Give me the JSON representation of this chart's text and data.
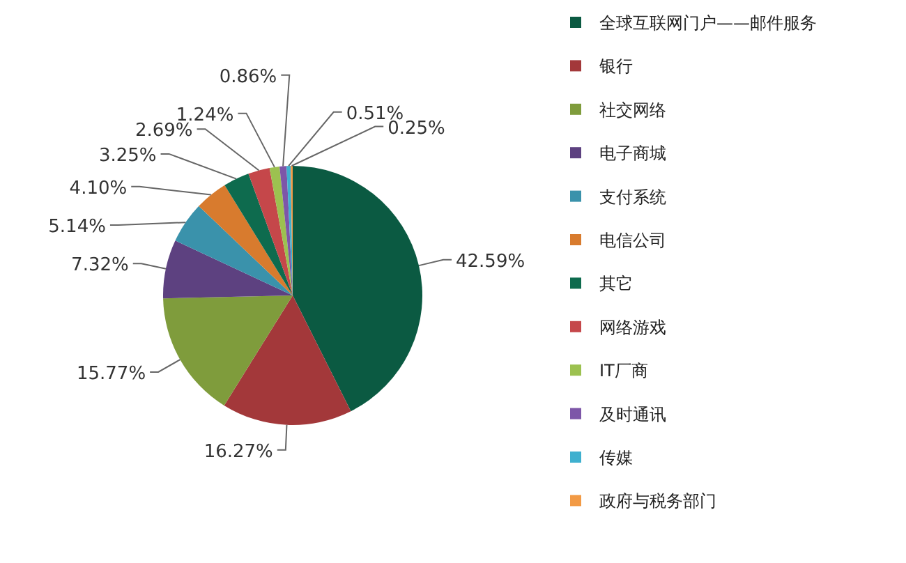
{
  "chart_data": {
    "type": "pie",
    "categories": [
      "全球互联网门户——邮件服务",
      "银行",
      "社交网络",
      "电子商城",
      "支付系统",
      "电信公司",
      "其它",
      "网络游戏",
      "IT厂商",
      "及时通讯",
      "传媒",
      "政府与税务部门"
    ],
    "values": [
      42.59,
      16.27,
      15.77,
      7.32,
      5.14,
      4.1,
      3.25,
      2.69,
      1.24,
      0.86,
      0.51,
      0.25
    ],
    "value_labels": [
      "42.59%",
      "16.27%",
      "15.77%",
      "7.32%",
      "5.14%",
      "4.10%",
      "3.25%",
      "2.69%",
      "1.24%",
      "0.86%",
      "0.51%",
      "0.25%"
    ],
    "colors": [
      "#0b5a42",
      "#a3383a",
      "#7f9c3c",
      "#5d4180",
      "#3a92ab",
      "#d87b2e",
      "#0e6b4e",
      "#c5474a",
      "#9cc150",
      "#7d56a8",
      "#3fb0cf",
      "#f29a45"
    ],
    "legend": "right"
  }
}
